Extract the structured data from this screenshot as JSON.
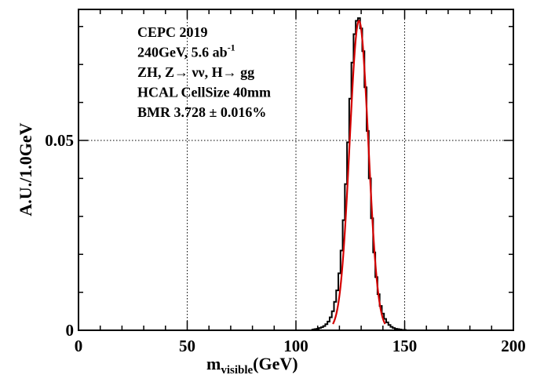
{
  "chart_data": {
    "type": "histogram",
    "title": "",
    "xlabel": {
      "main": "m",
      "sub": "visible",
      "unit": "(GeV)"
    },
    "ylabel": "A.U./1.0GeV",
    "xlim": [
      0,
      200
    ],
    "ylim": [
      0,
      0.0845
    ],
    "x_ticks": [
      0,
      50,
      100,
      150,
      200
    ],
    "x_tick_labels": [
      "0",
      "50",
      "100",
      "150",
      "200"
    ],
    "y_ticks": [
      0,
      0.05
    ],
    "y_tick_labels": [
      "0",
      "0.05"
    ],
    "grid": true,
    "annotations": [
      {
        "text": "CEPC 2019"
      },
      {
        "text": "240GeV, 5.6 ab",
        "sup": "-1"
      },
      {
        "text": "ZH, Z→ νν, H→ gg"
      },
      {
        "text": "HCAL CellSize 40mm"
      },
      {
        "text": "BMR 3.728 ± 0.016%"
      }
    ],
    "series": [
      {
        "kind": "histogram",
        "color": "#000000",
        "bin_width": 1.0,
        "x": [
          108,
          109,
          110,
          111,
          112,
          113,
          114,
          115,
          116,
          117,
          118,
          119,
          120,
          121,
          122,
          123,
          124,
          125,
          126,
          127,
          128,
          129,
          130,
          131,
          132,
          133,
          134,
          135,
          136,
          137,
          138,
          139,
          140,
          141,
          142,
          143,
          144,
          145,
          146,
          147,
          148,
          149,
          150,
          151
        ],
        "values": [
          0.0002,
          0.0003,
          0.0004,
          0.0006,
          0.0008,
          0.0011,
          0.0016,
          0.0023,
          0.0034,
          0.005,
          0.0075,
          0.0105,
          0.015,
          0.021,
          0.029,
          0.0385,
          0.0495,
          0.061,
          0.0705,
          0.078,
          0.0815,
          0.0822,
          0.0795,
          0.0735,
          0.064,
          0.0525,
          0.04,
          0.0295,
          0.0205,
          0.014,
          0.0095,
          0.0064,
          0.0044,
          0.003,
          0.0021,
          0.0014,
          0.0009,
          0.0006,
          0.0004,
          0.0003,
          0.0002,
          0.0001,
          0.0001,
          0.0
        ]
      },
      {
        "kind": "fit",
        "color": "#d40000",
        "mean": 129.0,
        "sigma": 4.3,
        "amplitude": 0.0815,
        "x_range": [
          117,
          141
        ]
      }
    ]
  }
}
